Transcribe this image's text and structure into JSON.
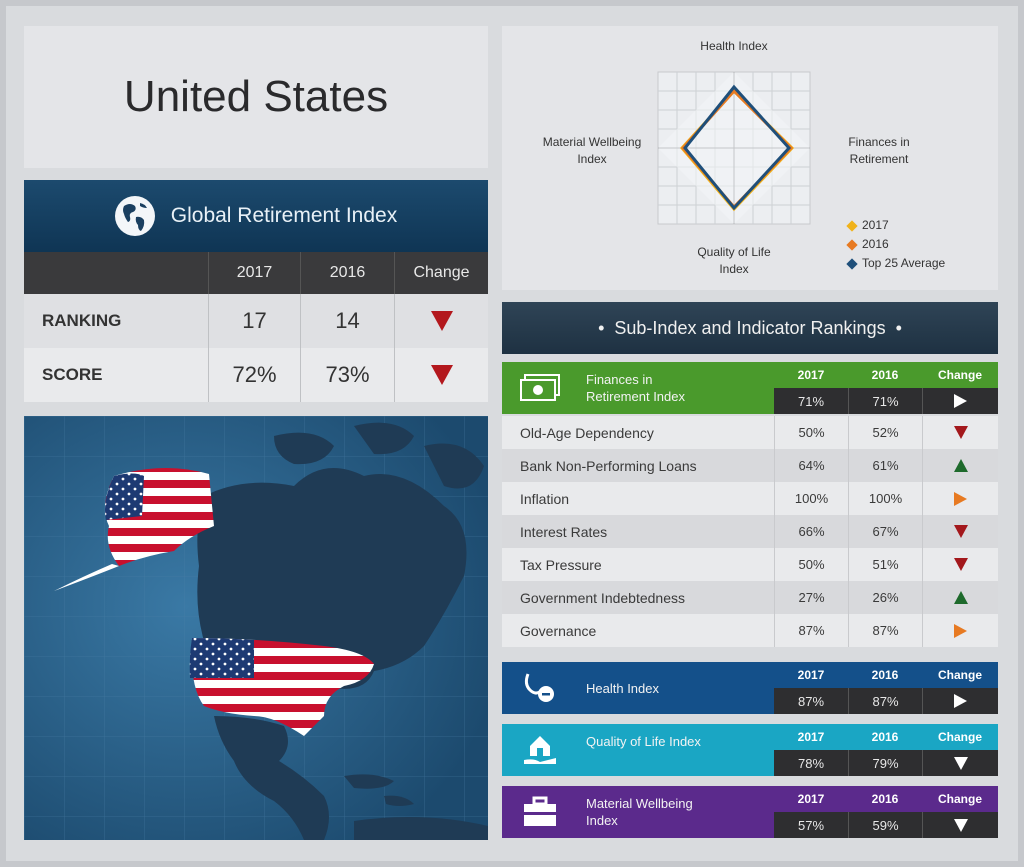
{
  "title": "United States",
  "gri": {
    "heading": "Global Retirement Index",
    "col_2017": "2017",
    "col_2016": "2016",
    "col_change": "Change",
    "rows": [
      {
        "label": "RANKING",
        "v2017": "17",
        "v2016": "14",
        "change": "down"
      },
      {
        "label": "SCORE",
        "v2017": "72%",
        "v2016": "73%",
        "change": "down"
      }
    ]
  },
  "radar": {
    "top": "Health Index",
    "right": "Finances in Retirement",
    "bottom": "Quality of Life Index",
    "left": "Material Wellbeing Index",
    "legend": [
      {
        "label": "2017",
        "color": "#f0b21a"
      },
      {
        "label": "2016",
        "color": "#e77a22"
      },
      {
        "label": "Top 25 Average",
        "color": "#1f4f7a"
      }
    ]
  },
  "sub": {
    "heading": "Sub-Index and Indicator Rankings",
    "finances": {
      "label": "Finances in Retirement Index",
      "y2017": "2017",
      "y2016": "2016",
      "change": "Change",
      "v2017": "71%",
      "v2016": "71%",
      "trend": "right",
      "color": "#4a9a2c"
    },
    "indicators": [
      {
        "name": "Old-Age Dependency",
        "v2017": "50%",
        "v2016": "52%",
        "trend": "down"
      },
      {
        "name": "Bank Non-Performing Loans",
        "v2017": "64%",
        "v2016": "61%",
        "trend": "up"
      },
      {
        "name": "Inflation",
        "v2017": "100%",
        "v2016": "100%",
        "trend": "right"
      },
      {
        "name": "Interest Rates",
        "v2017": "66%",
        "v2016": "67%",
        "trend": "down"
      },
      {
        "name": "Tax Pressure",
        "v2017": "50%",
        "v2016": "51%",
        "trend": "down"
      },
      {
        "name": "Government Indebtedness",
        "v2017": "27%",
        "v2016": "26%",
        "trend": "up"
      },
      {
        "name": "Governance",
        "v2017": "87%",
        "v2016": "87%",
        "trend": "right"
      }
    ],
    "health": {
      "label": "Health Index",
      "y2017": "2017",
      "y2016": "2016",
      "change": "Change",
      "v2017": "87%",
      "v2016": "87%",
      "trend": "right",
      "color": "#14508a"
    },
    "qol": {
      "label": "Quality of Life Index",
      "y2017": "2017",
      "y2016": "2016",
      "change": "Change",
      "v2017": "78%",
      "v2016": "79%",
      "trend": "down",
      "color": "#1aa6c4"
    },
    "material": {
      "label": "Material Wellbeing Index",
      "y2017": "2017",
      "y2016": "2016",
      "change": "Change",
      "v2017": "57%",
      "v2016": "59%",
      "trend": "down",
      "color": "#5b2a8c"
    }
  }
}
